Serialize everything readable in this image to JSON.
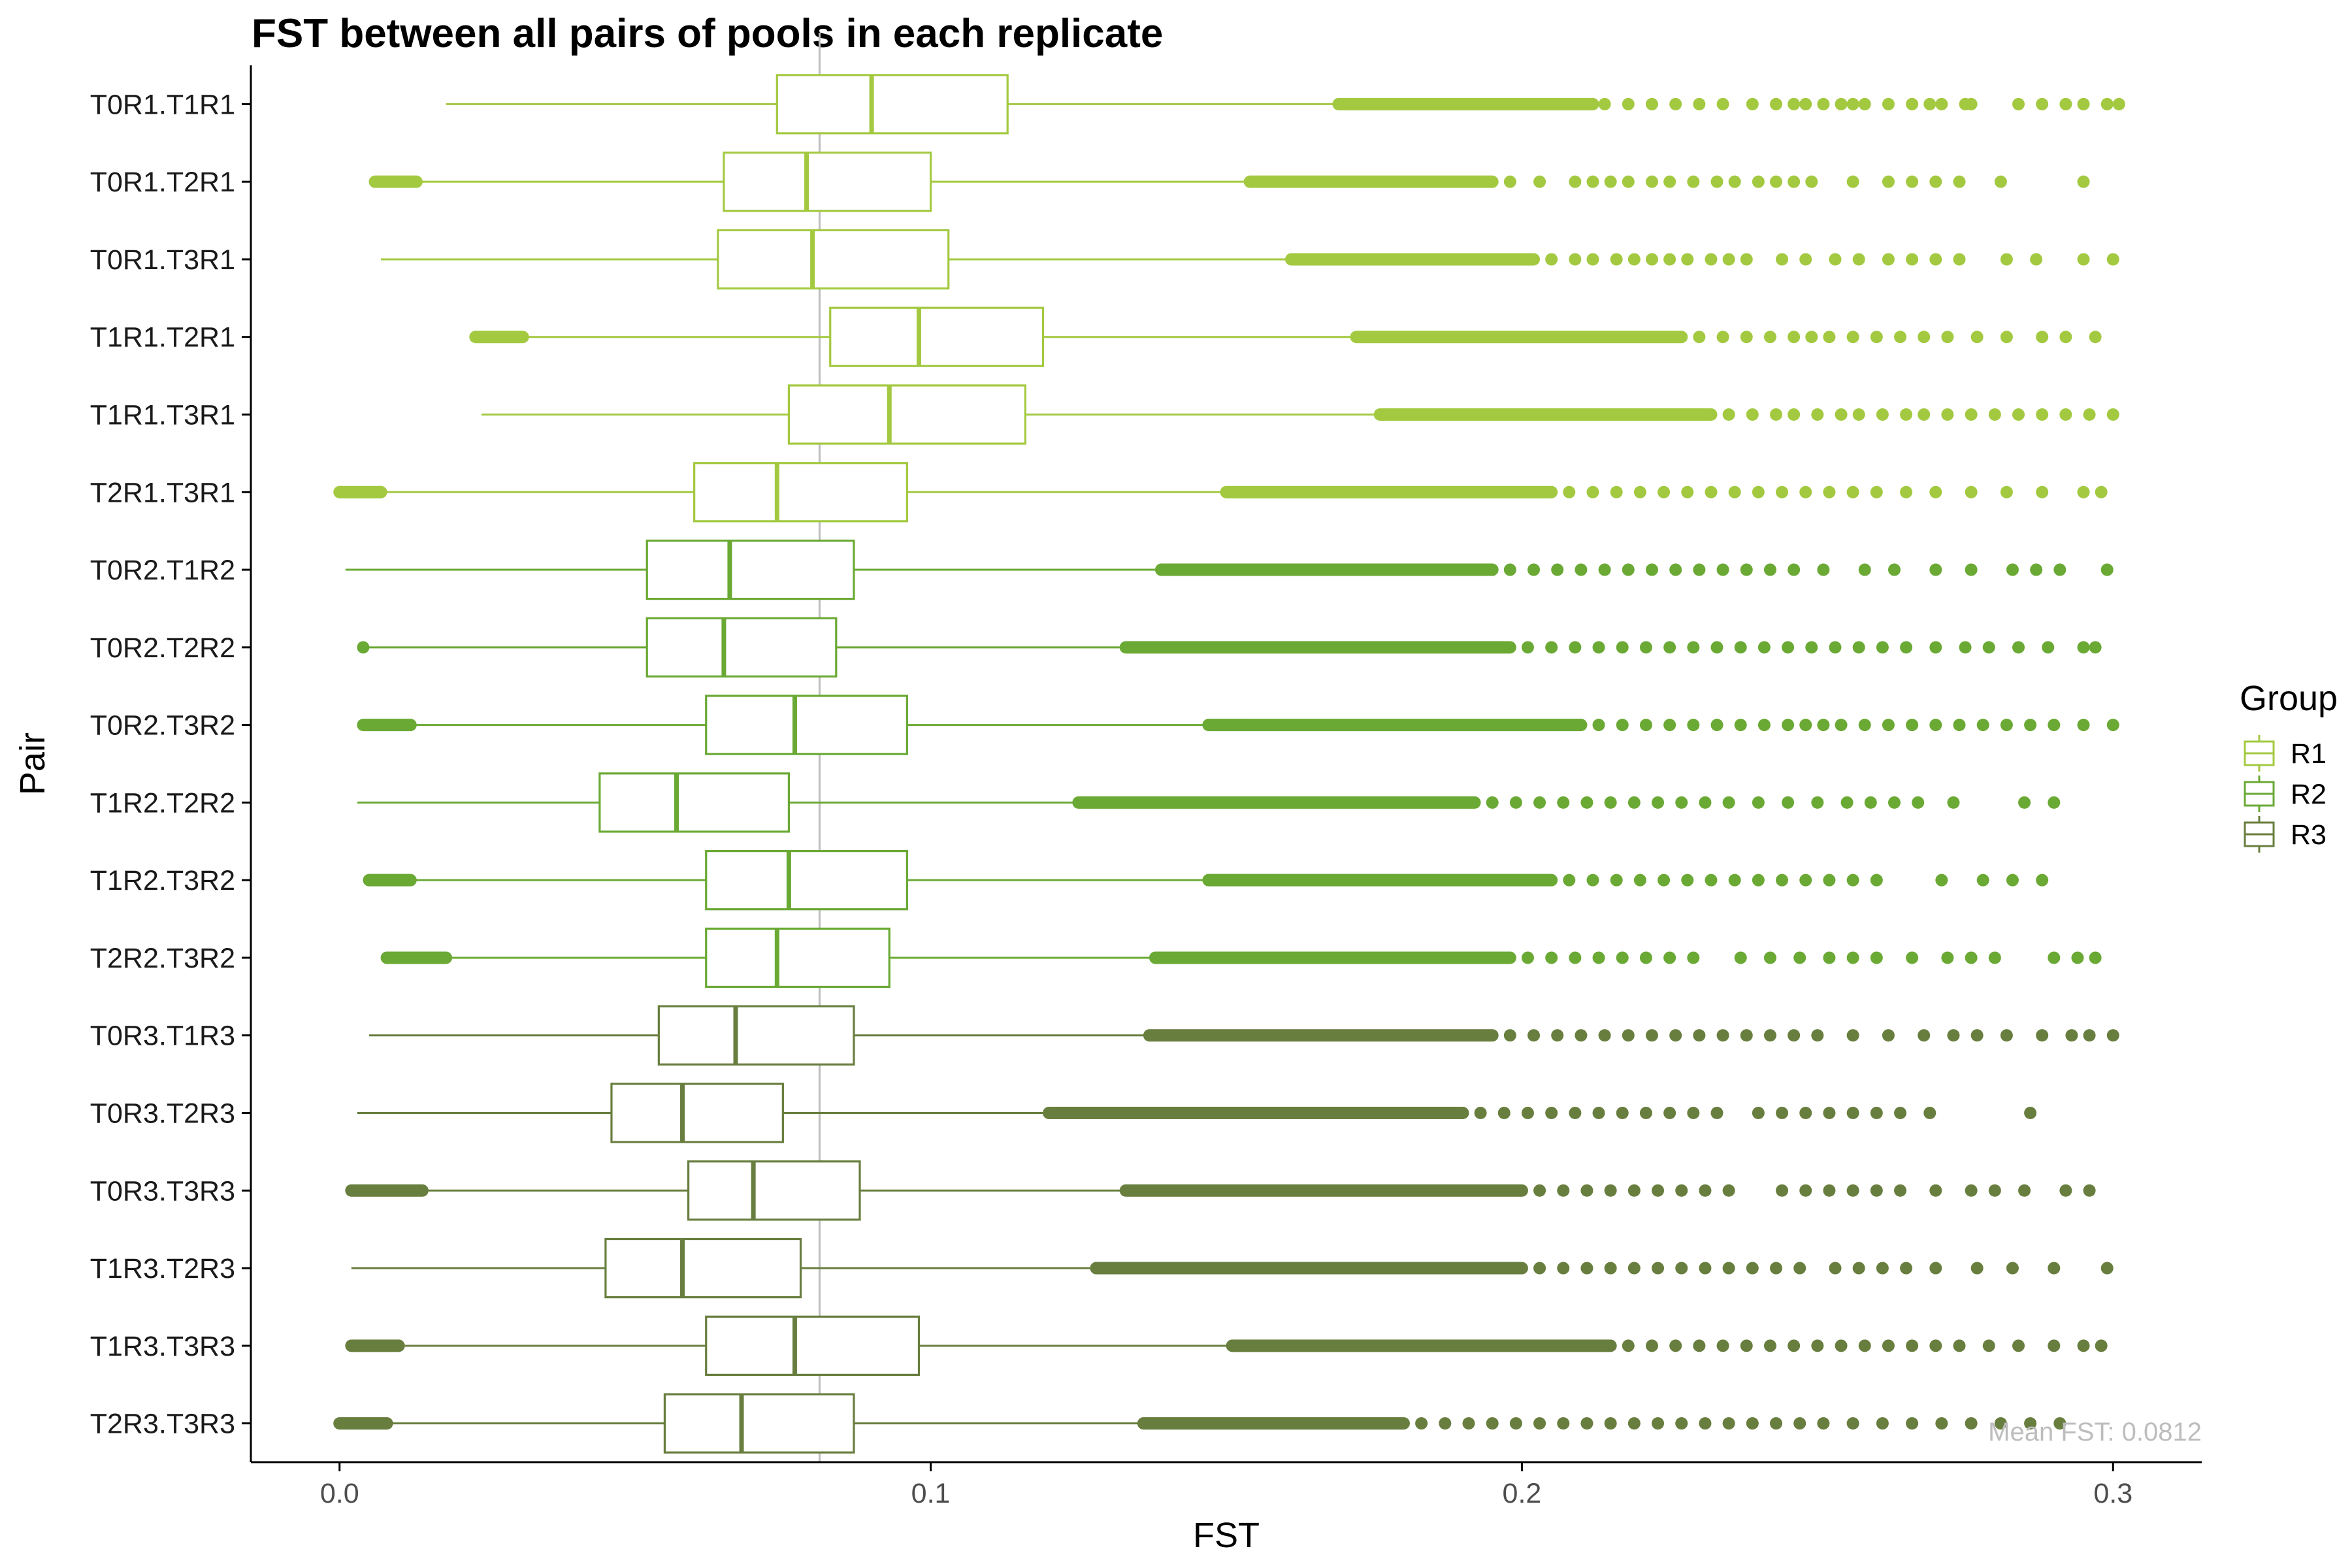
{
  "chart_data": {
    "type": "boxplot",
    "orientation": "horizontal",
    "title": "FST between all pairs of pools in each replicate",
    "xlabel": "FST",
    "ylabel": "Pair",
    "xlim": [
      -0.015,
      0.315
    ],
    "x_ticks": [
      0.0,
      0.1,
      0.2,
      0.3
    ],
    "x_tick_labels": [
      "0.0",
      "0.1",
      "0.2",
      "0.3"
    ],
    "legend": {
      "title": "Group",
      "position": "right",
      "entries": [
        {
          "name": "R1",
          "color": "#a3c940"
        },
        {
          "name": "R2",
          "color": "#6aa934"
        },
        {
          "name": "R3",
          "color": "#687e3e"
        }
      ]
    },
    "reference_line": {
      "x": 0.0812,
      "color": "#bdbdbd",
      "label": "Mean FST: 0.0812"
    },
    "grid": false,
    "pairs": [
      {
        "label": "T0R1.T1R1",
        "group": "R1",
        "whisker_low": 0.018,
        "q1": 0.074,
        "median": 0.09,
        "q3": 0.113,
        "whisker_high": 0.168,
        "low_outliers": [],
        "dense_outlier_range": [
          0.169,
          0.212
        ],
        "outliers": [
          0.214,
          0.218,
          0.222,
          0.226,
          0.23,
          0.234,
          0.239,
          0.243,
          0.246,
          0.248,
          0.251,
          0.254,
          0.256,
          0.258,
          0.262,
          0.266,
          0.269,
          0.271,
          0.275,
          0.276,
          0.284,
          0.288,
          0.292,
          0.295,
          0.299,
          0.301
        ]
      },
      {
        "label": "T0R1.T2R1",
        "group": "R1",
        "whisker_low": 0.013,
        "q1": 0.065,
        "median": 0.079,
        "q3": 0.1,
        "whisker_high": 0.153,
        "low_outliers": [
          0.006,
          0.013
        ],
        "dense_outlier_range": [
          0.154,
          0.195
        ],
        "outliers": [
          0.198,
          0.203,
          0.209,
          0.212,
          0.215,
          0.218,
          0.222,
          0.225,
          0.229,
          0.233,
          0.236,
          0.24,
          0.243,
          0.246,
          0.249,
          0.256,
          0.262,
          0.266,
          0.27,
          0.274,
          0.281,
          0.295
        ]
      },
      {
        "label": "T0R1.T3R1",
        "group": "R1",
        "whisker_low": 0.007,
        "q1": 0.064,
        "median": 0.08,
        "q3": 0.103,
        "whisker_high": 0.16,
        "low_outliers": [],
        "dense_outlier_range": [
          0.161,
          0.202
        ],
        "outliers": [
          0.205,
          0.209,
          0.212,
          0.216,
          0.219,
          0.222,
          0.225,
          0.228,
          0.232,
          0.235,
          0.238,
          0.244,
          0.248,
          0.253,
          0.257,
          0.262,
          0.266,
          0.27,
          0.274,
          0.282,
          0.287,
          0.295,
          0.3
        ]
      },
      {
        "label": "T1R1.T2R1",
        "group": "R1",
        "whisker_low": 0.031,
        "q1": 0.083,
        "median": 0.098,
        "q3": 0.119,
        "whisker_high": 0.171,
        "low_outliers": [
          0.023,
          0.031
        ],
        "dense_outlier_range": [
          0.172,
          0.227
        ],
        "outliers": [
          0.23,
          0.234,
          0.238,
          0.242,
          0.246,
          0.249,
          0.252,
          0.256,
          0.26,
          0.264,
          0.268,
          0.272,
          0.277,
          0.282,
          0.288,
          0.292,
          0.297
        ]
      },
      {
        "label": "T1R1.T3R1",
        "group": "R1",
        "whisker_low": 0.024,
        "q1": 0.076,
        "median": 0.093,
        "q3": 0.116,
        "whisker_high": 0.175,
        "low_outliers": [],
        "dense_outlier_range": [
          0.176,
          0.232
        ],
        "outliers": [
          0.235,
          0.239,
          0.243,
          0.246,
          0.25,
          0.254,
          0.257,
          0.261,
          0.265,
          0.268,
          0.272,
          0.276,
          0.28,
          0.284,
          0.288,
          0.292,
          0.296,
          0.3
        ]
      },
      {
        "label": "T2R1.T3R1",
        "group": "R1",
        "whisker_low": 0.007,
        "q1": 0.06,
        "median": 0.074,
        "q3": 0.096,
        "whisker_high": 0.149,
        "low_outliers": [
          0.0,
          0.007
        ],
        "dense_outlier_range": [
          0.15,
          0.205
        ],
        "outliers": [
          0.208,
          0.212,
          0.216,
          0.22,
          0.224,
          0.228,
          0.232,
          0.236,
          0.24,
          0.244,
          0.248,
          0.252,
          0.256,
          0.26,
          0.265,
          0.27,
          0.276,
          0.282,
          0.288,
          0.295,
          0.298
        ]
      },
      {
        "label": "T0R2.T1R2",
        "group": "R2",
        "whisker_low": 0.001,
        "q1": 0.052,
        "median": 0.066,
        "q3": 0.087,
        "whisker_high": 0.138,
        "low_outliers": [],
        "dense_outlier_range": [
          0.139,
          0.195
        ],
        "outliers": [
          0.198,
          0.202,
          0.206,
          0.21,
          0.214,
          0.218,
          0.222,
          0.226,
          0.23,
          0.234,
          0.238,
          0.242,
          0.246,
          0.251,
          0.258,
          0.263,
          0.27,
          0.276,
          0.283,
          0.287,
          0.291,
          0.299
        ]
      },
      {
        "label": "T0R2.T2R2",
        "group": "R2",
        "whisker_low": 0.005,
        "q1": 0.052,
        "median": 0.065,
        "q3": 0.084,
        "whisker_high": 0.132,
        "low_outliers": [
          0.004
        ],
        "dense_outlier_range": [
          0.133,
          0.198
        ],
        "outliers": [
          0.201,
          0.205,
          0.209,
          0.213,
          0.217,
          0.221,
          0.225,
          0.229,
          0.233,
          0.237,
          0.241,
          0.245,
          0.249,
          0.253,
          0.257,
          0.261,
          0.265,
          0.27,
          0.275,
          0.279,
          0.284,
          0.289,
          0.295,
          0.297
        ]
      },
      {
        "label": "T0R2.T3R2",
        "group": "R2",
        "whisker_low": 0.012,
        "q1": 0.062,
        "median": 0.077,
        "q3": 0.096,
        "whisker_high": 0.146,
        "low_outliers": [
          0.004,
          0.012
        ],
        "dense_outlier_range": [
          0.147,
          0.21
        ],
        "outliers": [
          0.213,
          0.217,
          0.221,
          0.225,
          0.229,
          0.233,
          0.237,
          0.241,
          0.245,
          0.248,
          0.251,
          0.254,
          0.258,
          0.262,
          0.266,
          0.27,
          0.274,
          0.278,
          0.282,
          0.286,
          0.29,
          0.295,
          0.3
        ]
      },
      {
        "label": "T1R2.T2R2",
        "group": "R2",
        "whisker_low": 0.003,
        "q1": 0.044,
        "median": 0.057,
        "q3": 0.076,
        "whisker_high": 0.124,
        "low_outliers": [],
        "dense_outlier_range": [
          0.125,
          0.192
        ],
        "outliers": [
          0.195,
          0.199,
          0.203,
          0.207,
          0.211,
          0.215,
          0.219,
          0.223,
          0.227,
          0.231,
          0.235,
          0.24,
          0.245,
          0.25,
          0.255,
          0.259,
          0.263,
          0.267,
          0.273,
          0.285,
          0.29
        ]
      },
      {
        "label": "T1R2.T3R2",
        "group": "R2",
        "whisker_low": 0.012,
        "q1": 0.062,
        "median": 0.076,
        "q3": 0.096,
        "whisker_high": 0.146,
        "low_outliers": [
          0.005,
          0.012
        ],
        "dense_outlier_range": [
          0.147,
          0.205
        ],
        "outliers": [
          0.208,
          0.212,
          0.216,
          0.22,
          0.224,
          0.228,
          0.232,
          0.236,
          0.24,
          0.244,
          0.248,
          0.252,
          0.256,
          0.26,
          0.271,
          0.278,
          0.283,
          0.288
        ]
      },
      {
        "label": "T2R2.T3R2",
        "group": "R2",
        "whisker_low": 0.018,
        "q1": 0.062,
        "median": 0.074,
        "q3": 0.093,
        "whisker_high": 0.137,
        "low_outliers": [
          0.008,
          0.018
        ],
        "dense_outlier_range": [
          0.138,
          0.198
        ],
        "outliers": [
          0.201,
          0.205,
          0.209,
          0.213,
          0.217,
          0.221,
          0.225,
          0.229,
          0.237,
          0.242,
          0.247,
          0.252,
          0.256,
          0.26,
          0.266,
          0.272,
          0.276,
          0.28,
          0.29,
          0.294,
          0.297
        ]
      },
      {
        "label": "T0R3.T1R3",
        "group": "R3",
        "whisker_low": 0.005,
        "q1": 0.054,
        "median": 0.067,
        "q3": 0.087,
        "whisker_high": 0.136,
        "low_outliers": [],
        "dense_outlier_range": [
          0.137,
          0.195
        ],
        "outliers": [
          0.198,
          0.202,
          0.206,
          0.21,
          0.214,
          0.218,
          0.222,
          0.226,
          0.23,
          0.234,
          0.238,
          0.242,
          0.246,
          0.25,
          0.256,
          0.262,
          0.268,
          0.273,
          0.277,
          0.282,
          0.288,
          0.293,
          0.296,
          0.3
        ]
      },
      {
        "label": "T0R3.T2R3",
        "group": "R3",
        "whisker_low": 0.003,
        "q1": 0.046,
        "median": 0.058,
        "q3": 0.075,
        "whisker_high": 0.119,
        "low_outliers": [],
        "dense_outlier_range": [
          0.12,
          0.19
        ],
        "outliers": [
          0.193,
          0.197,
          0.201,
          0.205,
          0.209,
          0.213,
          0.217,
          0.221,
          0.225,
          0.229,
          0.233,
          0.24,
          0.244,
          0.248,
          0.252,
          0.256,
          0.26,
          0.264,
          0.269,
          0.286
        ]
      },
      {
        "label": "T0R3.T3R3",
        "group": "R3",
        "whisker_low": 0.014,
        "q1": 0.059,
        "median": 0.07,
        "q3": 0.088,
        "whisker_high": 0.132,
        "low_outliers": [
          0.002,
          0.014
        ],
        "dense_outlier_range": [
          0.133,
          0.2
        ],
        "outliers": [
          0.203,
          0.207,
          0.211,
          0.215,
          0.219,
          0.223,
          0.227,
          0.231,
          0.235,
          0.244,
          0.248,
          0.252,
          0.256,
          0.26,
          0.264,
          0.27,
          0.276,
          0.28,
          0.285,
          0.292,
          0.296
        ]
      },
      {
        "label": "T1R3.T2R3",
        "group": "R3",
        "whisker_low": 0.002,
        "q1": 0.045,
        "median": 0.058,
        "q3": 0.078,
        "whisker_high": 0.127,
        "low_outliers": [],
        "dense_outlier_range": [
          0.128,
          0.2
        ],
        "outliers": [
          0.203,
          0.207,
          0.211,
          0.215,
          0.219,
          0.223,
          0.227,
          0.231,
          0.235,
          0.239,
          0.243,
          0.247,
          0.253,
          0.257,
          0.261,
          0.265,
          0.27,
          0.277,
          0.283,
          0.29,
          0.299
        ]
      },
      {
        "label": "T1R3.T3R3",
        "group": "R3",
        "whisker_low": 0.01,
        "q1": 0.062,
        "median": 0.077,
        "q3": 0.098,
        "whisker_high": 0.15,
        "low_outliers": [
          0.002,
          0.01
        ],
        "dense_outlier_range": [
          0.151,
          0.215
        ],
        "outliers": [
          0.218,
          0.222,
          0.226,
          0.23,
          0.234,
          0.238,
          0.242,
          0.246,
          0.25,
          0.254,
          0.258,
          0.262,
          0.266,
          0.27,
          0.274,
          0.279,
          0.284,
          0.29,
          0.295,
          0.298
        ]
      },
      {
        "label": "T2R3.T3R3",
        "group": "R3",
        "whisker_low": 0.008,
        "q1": 0.055,
        "median": 0.068,
        "q3": 0.087,
        "whisker_high": 0.135,
        "low_outliers": [
          0.0,
          0.008
        ],
        "dense_outlier_range": [
          0.136,
          0.18
        ],
        "outliers": [
          0.183,
          0.187,
          0.191,
          0.195,
          0.199,
          0.203,
          0.207,
          0.211,
          0.215,
          0.219,
          0.223,
          0.227,
          0.231,
          0.235,
          0.239,
          0.243,
          0.247,
          0.251,
          0.256,
          0.261,
          0.266,
          0.271,
          0.276,
          0.281,
          0.286,
          0.291
        ]
      }
    ]
  }
}
